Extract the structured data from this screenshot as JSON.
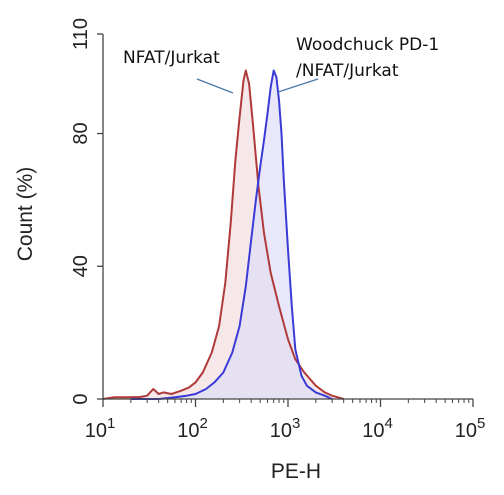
{
  "chart_data": {
    "type": "area",
    "xlabel": "PE-H",
    "ylabel": "Count  (%)",
    "x_scale": "log",
    "xlim": [
      10,
      100000
    ],
    "ylim": [
      0,
      110
    ],
    "x_ticks": [
      {
        "value": 10,
        "base": "10",
        "exp": "1"
      },
      {
        "value": 100,
        "base": "10",
        "exp": "2"
      },
      {
        "value": 1000,
        "base": "10",
        "exp": "3"
      },
      {
        "value": 10000,
        "base": "10",
        "exp": "4"
      },
      {
        "value": 100000,
        "base": "10",
        "exp": "5"
      }
    ],
    "y_ticks": [
      {
        "value": 0,
        "label": "0"
      },
      {
        "value": 40,
        "label": "40"
      },
      {
        "value": 80,
        "label": "80"
      },
      {
        "value": 110,
        "label": "110"
      }
    ],
    "grid": false,
    "annotations": [
      {
        "text": "NFAT/Jurkat",
        "series": "NFAT/Jurkat"
      },
      {
        "text": "Woodchuck PD-1",
        "series": "Woodchuck PD-1/NFAT/Jurkat"
      },
      {
        "text": "/NFAT/Jurkat",
        "series": "Woodchuck PD-1/NFAT/Jurkat"
      }
    ],
    "series": [
      {
        "name": "NFAT/Jurkat",
        "line_color": "#b03a3a",
        "fill_color": "#f1dcdc",
        "x": [
          10,
          13,
          18,
          25,
          30,
          35,
          40,
          45,
          55,
          70,
          85,
          100,
          120,
          150,
          180,
          210,
          240,
          270,
          300,
          330,
          350,
          380,
          420,
          480,
          550,
          650,
          800,
          1000,
          1200,
          1500,
          2000,
          2500,
          3000,
          4000
        ],
        "y": [
          0,
          0.5,
          0.5,
          0.6,
          1,
          3,
          1.5,
          2,
          1.5,
          2.5,
          3.5,
          5,
          8,
          14,
          22,
          35,
          53,
          72,
          85,
          96,
          99,
          95,
          82,
          64,
          50,
          38,
          28,
          18,
          12,
          8,
          4,
          2,
          1,
          0
        ]
      },
      {
        "name": "Woodchuck PD-1/NFAT/Jurkat",
        "line_color": "#3a3ad6",
        "fill_color": "#dcdcf7",
        "x": [
          20,
          40,
          60,
          80,
          100,
          130,
          160,
          200,
          250,
          300,
          350,
          400,
          450,
          500,
          550,
          600,
          650,
          700,
          750,
          800,
          850,
          900,
          1000,
          1100,
          1200,
          1400,
          1600,
          2000,
          2500,
          3000
        ],
        "y": [
          0,
          0,
          0.5,
          1,
          1.5,
          3,
          5,
          8,
          14,
          22,
          34,
          48,
          60,
          70,
          78,
          86,
          94,
          99,
          97,
          90,
          80,
          66,
          45,
          28,
          15,
          7,
          4,
          2,
          1,
          0
        ]
      }
    ]
  }
}
